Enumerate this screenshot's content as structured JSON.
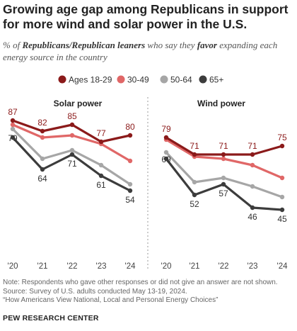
{
  "title": "Growing age gap among Republicans in support for more wind and solar power in the U.S.",
  "subtitle": {
    "part1": "% of ",
    "bold1": "Republicans/Republican leaners",
    "part2": " who say they ",
    "bold2": "favor",
    "part3": " expanding each energy source in the country"
  },
  "colors": {
    "Ages 18-29": "#8b1a1a",
    "30-49": "#e06767",
    "50-64": "#a6a6a6",
    "65+": "#3c3c3c",
    "label_dark": "#333333",
    "label_red": "#8b1a1a",
    "divider": "#999999"
  },
  "chart_data": [
    {
      "type": "line",
      "title": "Solar power",
      "x": [
        "'20",
        "'21",
        "'22",
        "'23",
        "'24"
      ],
      "ylim": [
        0,
        100
      ],
      "series": [
        {
          "name": "Ages 18-29",
          "values": [
            87,
            82,
            85,
            77,
            80
          ],
          "labeled": true
        },
        {
          "name": "30-49",
          "values": [
            85,
            79,
            80,
            76,
            68
          ],
          "labeled": false
        },
        {
          "name": "50-64",
          "values": [
            83,
            69,
            73,
            66,
            57
          ],
          "labeled": false
        },
        {
          "name": "65+",
          "values": [
            79,
            64,
            71,
            61,
            54
          ],
          "labeled": true
        }
      ]
    },
    {
      "type": "line",
      "title": "Wind power",
      "x": [
        "'20",
        "'21",
        "'22",
        "'23",
        "'24"
      ],
      "ylim": [
        0,
        100
      ],
      "series": [
        {
          "name": "Ages 18-29",
          "values": [
            79,
            71,
            71,
            71,
            75
          ],
          "labeled": true
        },
        {
          "name": "30-49",
          "values": [
            78,
            70,
            69,
            66,
            60
          ],
          "labeled": false
        },
        {
          "name": "50-64",
          "values": [
            72,
            58,
            60,
            56,
            51
          ],
          "labeled": false
        },
        {
          "name": "65+",
          "values": [
            69,
            52,
            57,
            46,
            45
          ],
          "labeled": true
        }
      ]
    }
  ],
  "legend": [
    "Ages 18-29",
    "30-49",
    "50-64",
    "65+"
  ],
  "footer": {
    "note": "Note: Respondents who gave other responses or did not give an answer are not shown.",
    "source": "Source: Survey of U.S. adults conducted May 13-19, 2024.",
    "report": "“How Americans View National, Local and Personal Energy Choices”"
  },
  "brand": "PEW RESEARCH CENTER"
}
